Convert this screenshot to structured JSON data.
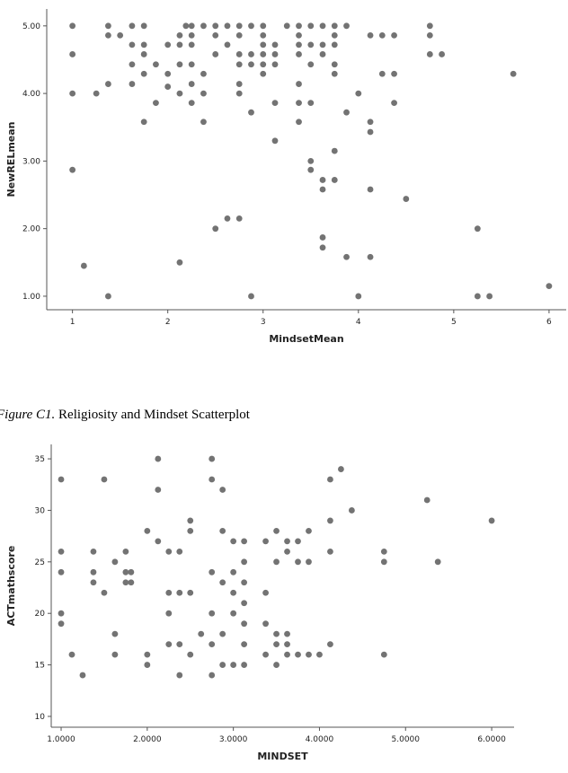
{
  "chart_data": [
    {
      "type": "scatter",
      "x_label": "MindsetMean",
      "y_label": "NewRELmean",
      "color": "#737373",
      "xlim": [
        0.73,
        6.18
      ],
      "ylim": [
        0.8,
        5.25
      ],
      "xticks": [
        1,
        2,
        3,
        4,
        5,
        6
      ],
      "yticks": [
        {
          "value": 1,
          "label": "1.00"
        },
        {
          "value": 2,
          "label": "2.00"
        },
        {
          "value": 3,
          "label": "3.00"
        },
        {
          "value": 4,
          "label": "4.00"
        },
        {
          "value": 5,
          "label": "5.00"
        }
      ],
      "x": [
        1,
        1,
        1,
        1,
        1.12,
        1.25,
        1.375,
        1.375,
        1.375,
        1.375,
        1.5,
        1.625,
        1.625,
        1.625,
        1.625,
        1.75,
        1.75,
        1.75,
        1.75,
        1.75,
        1.875,
        1.875,
        2,
        2,
        2,
        2.125,
        2.125,
        2.125,
        2.125,
        2.125,
        2.19,
        2.25,
        2.25,
        2.25,
        2.25,
        2.25,
        2.25,
        2.375,
        2.375,
        2.375,
        2.375,
        2.5,
        2.5,
        2.5,
        2.5,
        2.625,
        2.625,
        2.625,
        2.75,
        2.75,
        2.75,
        2.75,
        2.75,
        2.75,
        2.75,
        2.875,
        2.875,
        2.875,
        2.875,
        2.875,
        3,
        3,
        3,
        3,
        3,
        3,
        3.125,
        3.125,
        3.125,
        3.125,
        3.125,
        3.25,
        3.375,
        3.375,
        3.375,
        3.375,
        3.375,
        3.375,
        3.375,
        3.5,
        3.5,
        3.5,
        3.5,
        3.5,
        3.5,
        3.625,
        3.625,
        3.625,
        3.625,
        3.625,
        3.625,
        3.625,
        3.75,
        3.75,
        3.75,
        3.75,
        3.75,
        3.75,
        3.75,
        3.875,
        3.875,
        3.875,
        4,
        4,
        4.125,
        4.125,
        4.125,
        4.125,
        4.125,
        4.25,
        4.25,
        4.375,
        4.375,
        4.375,
        4.5,
        4.75,
        4.75,
        4.75,
        4.875,
        5.25,
        5.25,
        5.375,
        5.625,
        6
      ],
      "values": [
        5,
        4.58,
        4,
        2.87,
        1.45,
        4,
        5,
        4.86,
        4.14,
        1,
        4.86,
        5,
        4.72,
        4.43,
        4.14,
        5,
        4.72,
        4.58,
        4.29,
        3.58,
        4.43,
        3.86,
        4.72,
        4.29,
        4.1,
        4.86,
        4.72,
        4.43,
        4,
        1.5,
        5,
        5,
        4.86,
        4.72,
        4.43,
        4.14,
        3.86,
        5,
        4.29,
        4,
        3.58,
        5,
        4.86,
        4.58,
        2,
        5,
        4.72,
        2.15,
        5,
        4.86,
        4.58,
        4.43,
        4.14,
        4,
        2.15,
        5,
        4.58,
        4.43,
        3.72,
        1,
        5,
        4.86,
        4.72,
        4.58,
        4.43,
        4.29,
        4.72,
        4.58,
        4.43,
        3.86,
        3.3,
        5,
        5,
        4.86,
        4.72,
        4.58,
        4.14,
        3.86,
        3.58,
        5,
        4.72,
        4.43,
        3.86,
        3,
        2.87,
        5,
        4.72,
        4.58,
        2.72,
        2.58,
        1.87,
        1.72,
        5,
        4.86,
        4.72,
        4.43,
        4.29,
        3.15,
        2.72,
        5,
        3.72,
        1.58,
        4,
        1,
        4.86,
        3.58,
        3.43,
        2.58,
        1.58,
        4.86,
        4.29,
        4.86,
        4.29,
        3.86,
        2.44,
        5,
        4.86,
        4.58,
        4.58,
        2,
        1,
        1,
        4.29,
        1.15
      ]
    },
    {
      "type": "scatter",
      "x_label": "MINDSET",
      "y_label": "ACTmathscore",
      "color": "#737373",
      "xlim": [
        0.885,
        6.26
      ],
      "ylim": [
        8.95,
        36.4
      ],
      "xticks": [
        {
          "value": 1,
          "label": "1.0000"
        },
        {
          "value": 2,
          "label": "2.0000"
        },
        {
          "value": 3,
          "label": "3.0000"
        },
        {
          "value": 4,
          "label": "4.0000"
        },
        {
          "value": 5,
          "label": "5.0000"
        },
        {
          "value": 6,
          "label": "6.0000"
        }
      ],
      "yticks": [
        10,
        15,
        20,
        25,
        30,
        35
      ],
      "x": [
        1,
        1,
        1,
        1,
        1,
        1.125,
        1.25,
        1.375,
        1.375,
        1.375,
        1.5,
        1.5,
        1.625,
        1.625,
        1.625,
        1.75,
        1.75,
        1.75,
        1.8125,
        1.8125,
        2,
        2,
        2,
        2.125,
        2.125,
        2.125,
        2.25,
        2.25,
        2.25,
        2.25,
        2.375,
        2.375,
        2.375,
        2.375,
        2.5,
        2.5,
        2.5,
        2.5,
        2.625,
        2.75,
        2.75,
        2.75,
        2.75,
        2.75,
        2.75,
        2.875,
        2.875,
        2.875,
        2.875,
        2.875,
        3,
        3,
        3,
        3,
        3,
        3.125,
        3.125,
        3.125,
        3.125,
        3.125,
        3.125,
        3.125,
        3.375,
        3.375,
        3.375,
        3.375,
        3.5,
        3.5,
        3.5,
        3.5,
        3.5,
        3.625,
        3.625,
        3.625,
        3.625,
        3.625,
        3.75,
        3.75,
        3.75,
        3.875,
        3.875,
        3.875,
        4,
        4.125,
        4.125,
        4.125,
        4.125,
        4.25,
        4.375,
        4.75,
        4.75,
        4.75,
        5.25,
        5.375,
        6
      ],
      "values": [
        33,
        26,
        24,
        20,
        19,
        16,
        14,
        26,
        24,
        23,
        33,
        22,
        25,
        18,
        16,
        26,
        24,
        23,
        24,
        23,
        28,
        16,
        15,
        35,
        32,
        27,
        26,
        22,
        20,
        17,
        26,
        22,
        17,
        14,
        29,
        28,
        22,
        16,
        18,
        35,
        33,
        24,
        20,
        17,
        14,
        32,
        28,
        23,
        18,
        15,
        27,
        24,
        22,
        20,
        15,
        27,
        25,
        23,
        21,
        19,
        17,
        15,
        27,
        22,
        19,
        16,
        28,
        25,
        18,
        17,
        15,
        27,
        26,
        18,
        17,
        16,
        27,
        25,
        16,
        28,
        25,
        16,
        16,
        33,
        29,
        26,
        17,
        34,
        30,
        26,
        25,
        16,
        31,
        25,
        29
      ]
    }
  ],
  "caption": {
    "label": "Figure C1.",
    "text": "Religiosity and Mindset Scatterplot"
  }
}
